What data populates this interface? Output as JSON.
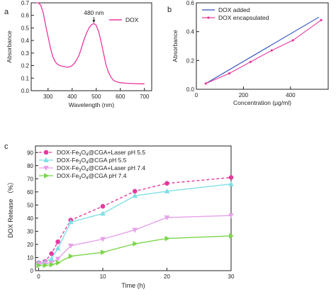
{
  "chart_data": [
    {
      "panel": "a",
      "type": "line",
      "title": "",
      "xlabel": "Wavelength (nm)",
      "ylabel": "Absorbance",
      "xlim": [
        230,
        730
      ],
      "ylim": [
        0,
        0.7
      ],
      "xticks": [
        300,
        400,
        500,
        600,
        700
      ],
      "yticks": [
        0.0,
        0.1,
        0.2,
        0.3,
        0.4,
        0.5,
        0.6,
        0.7
      ],
      "ytick_labels": [
        "0.0",
        "0.1",
        "0.2",
        "0.3",
        "0.4",
        "0.5",
        "0.6",
        "0.7"
      ],
      "legend": "top-right",
      "grid": false,
      "annotation": {
        "text": "480 nm",
        "x": 490,
        "y": 0.535
      },
      "series": [
        {
          "name": "DOX",
          "color": "#e8389f",
          "x": [
            250,
            260,
            270,
            280,
            290,
            300,
            310,
            320,
            330,
            340,
            350,
            360,
            370,
            380,
            390,
            400,
            410,
            420,
            430,
            440,
            450,
            460,
            470,
            480,
            490,
            500,
            510,
            520,
            530,
            540,
            550,
            560,
            570,
            580,
            590,
            600,
            620,
            650,
            680,
            700
          ],
          "y": [
            0.7,
            0.7,
            0.68,
            0.62,
            0.52,
            0.43,
            0.34,
            0.27,
            0.23,
            0.21,
            0.2,
            0.195,
            0.19,
            0.187,
            0.19,
            0.2,
            0.22,
            0.25,
            0.29,
            0.35,
            0.41,
            0.46,
            0.5,
            0.525,
            0.535,
            0.52,
            0.47,
            0.39,
            0.3,
            0.21,
            0.15,
            0.11,
            0.085,
            0.075,
            0.068,
            0.064,
            0.06,
            0.057,
            0.055,
            0.055
          ]
        }
      ]
    },
    {
      "panel": "b",
      "type": "line",
      "title": "",
      "xlabel": "Concentration (μg/ml)",
      "ylabel": "Absorbance",
      "xlim": [
        0,
        560
      ],
      "ylim": [
        0,
        0.6
      ],
      "xticks": [
        0,
        200,
        400
      ],
      "yticks": [
        0.0,
        0.2,
        0.4,
        0.6
      ],
      "ytick_labels": [
        "0.0",
        "0.2",
        "0.4",
        "0.6"
      ],
      "legend": "top-left",
      "grid": false,
      "series": [
        {
          "name": "DOX added",
          "color": "#2f4fbf",
          "marker": "none",
          "x": [
            40,
            520
          ],
          "y": [
            0.04,
            0.5
          ]
        },
        {
          "name": "DOX encapsulated",
          "color": "#e8389f",
          "marker": "circle",
          "x": [
            40,
            140,
            230,
            320,
            410,
            530
          ],
          "y": [
            0.04,
            0.11,
            0.19,
            0.27,
            0.34,
            0.48
          ]
        }
      ]
    },
    {
      "panel": "c",
      "type": "line",
      "title": "",
      "xlabel": "Time (h)",
      "ylabel": "DOX Release （%）",
      "xlim": [
        -0.5,
        30
      ],
      "ylim": [
        0,
        95
      ],
      "xticks": [
        0,
        10,
        20,
        30
      ],
      "yticks": [
        0,
        10,
        20,
        30,
        40,
        50,
        60,
        70,
        80,
        90
      ],
      "legend": "top-left",
      "grid": false,
      "series": [
        {
          "name_parts": [
            "DOX-Fe",
            "3",
            "O",
            "4",
            "@CGA+Laser pH 5.5"
          ],
          "color": "#e8389f",
          "dash": "4,3",
          "marker": "circle",
          "x": [
            0,
            1,
            2,
            3,
            5,
            10,
            15,
            20,
            30
          ],
          "y": [
            6,
            7,
            13,
            22,
            38.5,
            49,
            60.5,
            66.5,
            71
          ]
        },
        {
          "name_parts": [
            "DOX-Fe",
            "3",
            "O",
            "4",
            "@CGA pH 5.5"
          ],
          "color": "#7ee0e6",
          "dash": "none",
          "marker": "triangle-up",
          "x": [
            0,
            1,
            2,
            3,
            5,
            10,
            15,
            20,
            30
          ],
          "y": [
            6,
            6.5,
            9,
            17,
            37,
            43.5,
            57,
            60.5,
            66
          ]
        },
        {
          "name_parts": [
            "DOX-Fe",
            "3",
            "O",
            "4",
            "@CGA+Laser pH 7.4"
          ],
          "color": "#e7a0ec",
          "dash": "none",
          "marker": "triangle-down",
          "x": [
            0,
            1,
            2,
            3,
            5,
            10,
            15,
            20,
            30
          ],
          "y": [
            5,
            5.5,
            6,
            9,
            19,
            24,
            31,
            40.5,
            42
          ]
        },
        {
          "name_parts": [
            "DOX-Fe",
            "3",
            "O",
            "4",
            "@CGA pH 7.4"
          ],
          "color": "#7ad64a",
          "dash": "none",
          "marker": "triangle-right",
          "x": [
            0,
            1,
            2,
            3,
            5,
            10,
            15,
            20,
            30
          ],
          "y": [
            4,
            4,
            4.5,
            6,
            11,
            14,
            20.5,
            24.5,
            26.5
          ]
        }
      ]
    }
  ],
  "panel_labels": [
    "a",
    "b",
    "c"
  ]
}
